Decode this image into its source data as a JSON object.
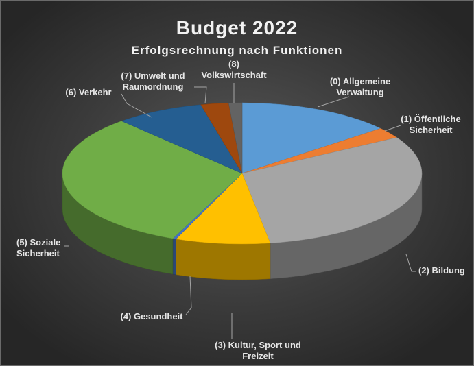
{
  "chart_data": {
    "type": "pie",
    "title": "Budget 2022",
    "subtitle": "Erfolgsrechnung nach Funktionen",
    "slices": [
      {
        "label": "(0) Allgemeine Verwaltung",
        "label_lines": [
          "(0) Allgemeine",
          "Verwaltung"
        ],
        "value": 14.0,
        "color": "#5b9bd5"
      },
      {
        "label": "(1) Öffentliche Sicherheit",
        "label_lines": [
          "(1) Öffentliche",
          "Sicherheit"
        ],
        "value": 2.5,
        "color": "#ed7d31"
      },
      {
        "label": "(2) Bildung",
        "label_lines": [
          "(2) Bildung"
        ],
        "value": 31.0,
        "color": "#a5a5a5"
      },
      {
        "label": "(3) Kultur, Sport und Freizeit",
        "label_lines": [
          "(3) Kultur, Sport und",
          "Freizeit"
        ],
        "value": 8.5,
        "color": "#ffc000"
      },
      {
        "label": "(4) Gesundheit",
        "label_lines": [
          "(4) Gesundheit"
        ],
        "value": 0.3,
        "color": "#4472c4"
      },
      {
        "label": "(5) Soziale Sicherheit",
        "label_lines": [
          "(5) Soziale",
          "Sicherheit"
        ],
        "value": 32.0,
        "color": "#70ad47"
      },
      {
        "label": "(6) Verkehr",
        "label_lines": [
          "(6) Verkehr"
        ],
        "value": 8.0,
        "color": "#255e91"
      },
      {
        "label": "(7) Umwelt und Raumordnung",
        "label_lines": [
          "(7) Umwelt und",
          "Raumordnung"
        ],
        "value": 2.5,
        "color": "#9e480e"
      },
      {
        "label": "(8) Volkswirtschaft",
        "label_lines": [
          "(8)",
          "Volkswirtschaft"
        ],
        "value": 1.2,
        "color": "#636363"
      }
    ]
  }
}
